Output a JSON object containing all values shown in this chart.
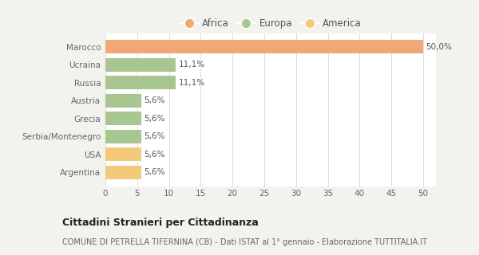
{
  "categories": [
    "Argentina",
    "USA",
    "Serbia/Montenegro",
    "Grecia",
    "Austria",
    "Russia",
    "Ucraina",
    "Marocco"
  ],
  "values": [
    5.6,
    5.6,
    5.6,
    5.6,
    5.6,
    11.1,
    11.1,
    50.0
  ],
  "colors": [
    "#f5c97a",
    "#f5c97a",
    "#a8c68f",
    "#a8c68f",
    "#a8c68f",
    "#a8c68f",
    "#a8c68f",
    "#f0a875"
  ],
  "labels": [
    "5,6%",
    "5,6%",
    "5,6%",
    "5,6%",
    "5,6%",
    "11,1%",
    "11,1%",
    "50,0%"
  ],
  "xlim": [
    0,
    52
  ],
  "xticks": [
    0,
    5,
    10,
    15,
    20,
    25,
    30,
    35,
    40,
    45,
    50
  ],
  "legend_items": [
    {
      "label": "Africa",
      "color": "#f0a875"
    },
    {
      "label": "Europa",
      "color": "#a8c68f"
    },
    {
      "label": "America",
      "color": "#f5c97a"
    }
  ],
  "title": "Cittadini Stranieri per Cittadinanza",
  "subtitle": "COMUNE DI PETRELLA TIFERNINA (CB) - Dati ISTAT al 1° gennaio - Elaborazione TUTTITALIA.IT",
  "bg_color": "#f2f2ee",
  "plot_bg_color": "#ffffff",
  "grid_color": "#dddddd",
  "label_color": "#666666",
  "value_label_color": "#555555"
}
